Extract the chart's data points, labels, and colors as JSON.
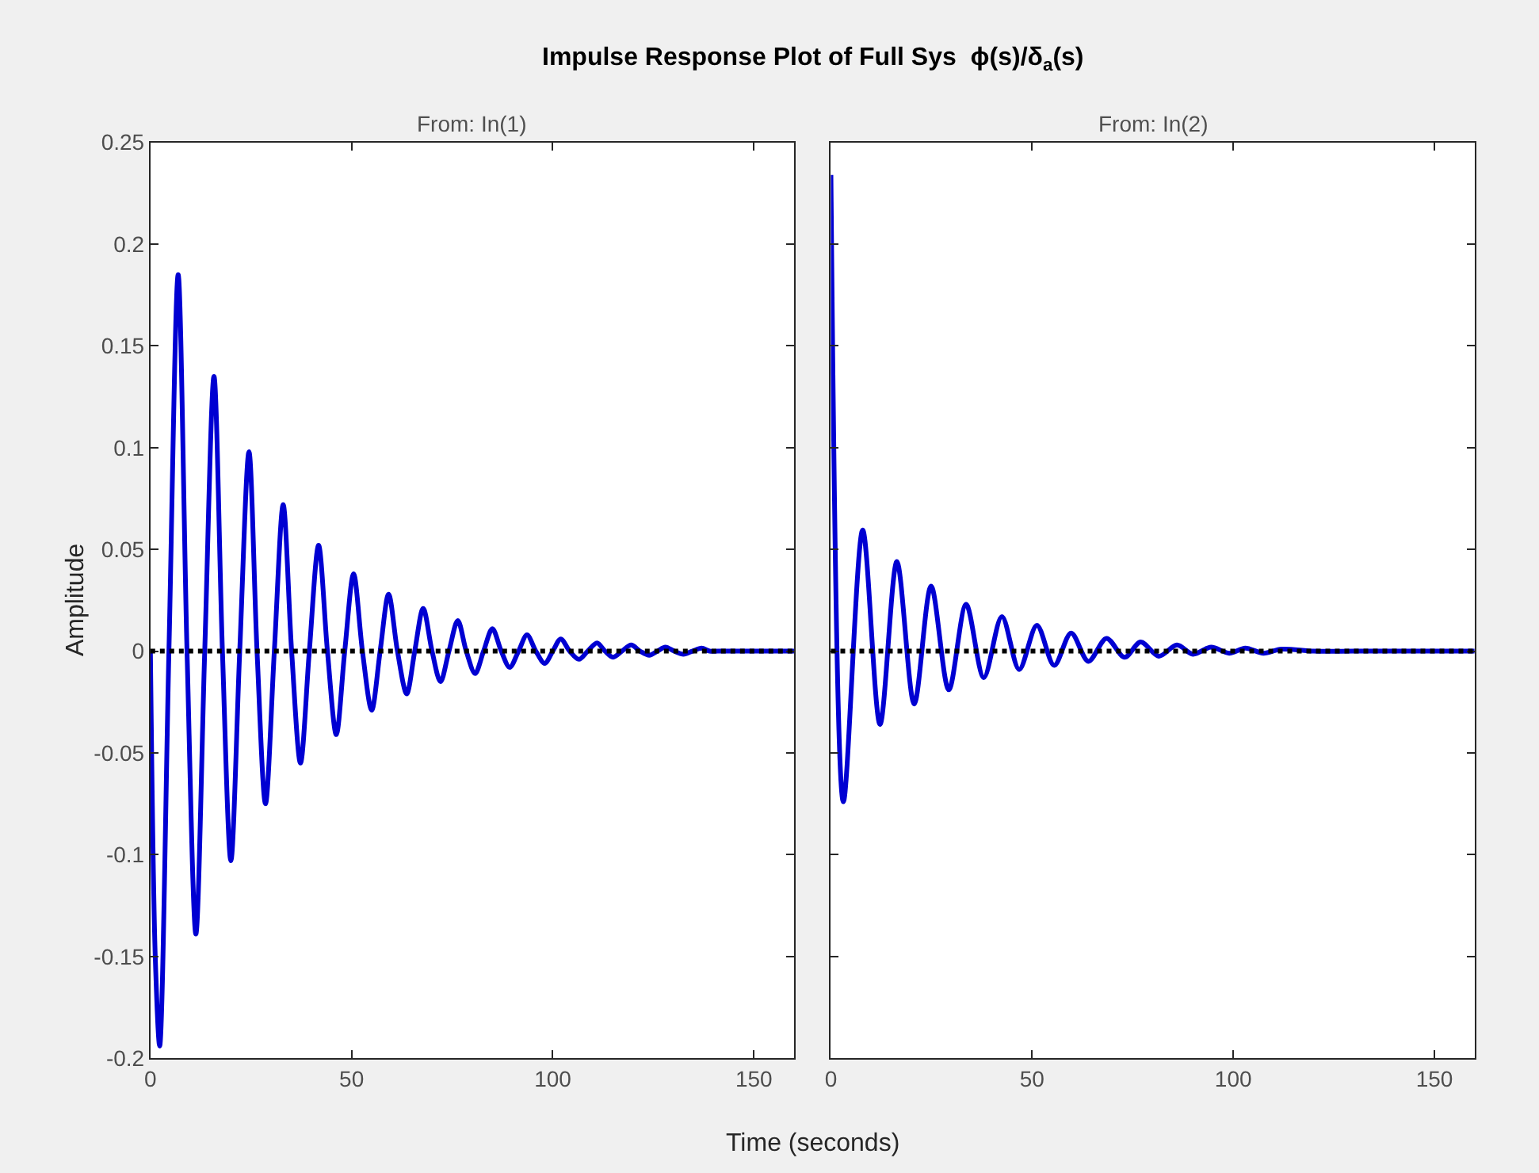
{
  "chart_data": [
    {
      "type": "line",
      "title": "Impulse Response Plot of Full Sys  ϕ(s)/δ$_{a}$(s)",
      "subtitle": "From: In(1)",
      "xlabel": "Time (seconds)",
      "ylabel": "Amplitude",
      "xlim": [
        0,
        160
      ],
      "xticks": [
        0,
        50,
        100,
        150
      ],
      "ylim": [
        -0.2,
        0.25
      ],
      "yticks": [
        -0.2,
        -0.15,
        -0.1,
        -0.05,
        0,
        0.05,
        0.1,
        0.15,
        0.2,
        0.25
      ],
      "marker": "none",
      "line_style": "solid",
      "ref_lines": [
        {
          "axis": "y",
          "value": 0,
          "color": "#000000",
          "line_style": "dotted"
        }
      ],
      "series": [
        {
          "color": "#0000d2",
          "x": [
            0,
            1.2,
            2.3,
            4.6,
            6.9,
            9.1,
            11.3,
            13.5,
            15.8,
            17.9,
            20,
            22.2,
            24.5,
            26.5,
            28.6,
            30.8,
            33,
            35.1,
            37.3,
            39.5,
            41.8,
            44,
            46.2,
            48.3,
            50.5,
            52.7,
            55,
            57.1,
            59.2,
            61.4,
            63.7,
            65.7,
            67.8,
            70,
            72.1,
            74.2,
            76.4,
            78.5,
            80.7,
            82.8,
            85,
            87.2,
            89.3,
            91.5,
            93.6,
            95.8,
            98,
            100,
            102,
            104.2,
            106.5,
            108.7,
            111,
            113,
            115,
            117.2,
            119.5,
            121.7,
            124,
            126,
            128,
            130.2,
            132.5,
            134.7,
            137,
            139,
            141,
            145,
            150,
            155,
            160
          ],
          "values": [
            0,
            -0.15,
            -0.194,
            0,
            0.185,
            0,
            -0.139,
            0,
            0.135,
            0,
            -0.103,
            0,
            0.098,
            0,
            -0.075,
            0,
            0.072,
            0,
            -0.055,
            0,
            0.052,
            0,
            -0.041,
            0,
            0.038,
            0,
            -0.029,
            0,
            0.028,
            0,
            -0.021,
            0,
            0.021,
            0,
            -0.015,
            0,
            0.015,
            0,
            -0.011,
            0,
            0.011,
            0,
            -0.008,
            0,
            0.008,
            0,
            -0.006,
            0,
            0.006,
            0,
            -0.004,
            0,
            0.004,
            0,
            -0.003,
            0,
            0.003,
            0,
            -0.002,
            0,
            0.002,
            0,
            -0.0015,
            0,
            0.0015,
            0,
            0,
            0,
            0,
            0,
            0
          ]
        }
      ]
    },
    {
      "type": "line",
      "subtitle": "From: In(2)",
      "xlim": [
        0,
        160
      ],
      "xticks": [
        0,
        50,
        100,
        150
      ],
      "ylim": [
        -0.2,
        0.25
      ],
      "yticks": [
        -0.2,
        -0.15,
        -0.1,
        -0.05,
        0,
        0.05,
        0.1,
        0.15,
        0.2,
        0.25
      ],
      "tick_labels": "x",
      "marker": "none",
      "line_style": "solid",
      "ref_lines": [
        {
          "axis": "y",
          "value": 0,
          "color": "#000000",
          "line_style": "dotted"
        }
      ],
      "series": [
        {
          "color": "#0000d2",
          "x": [
            0,
            3.1,
            7.9,
            12.2,
            16.4,
            20.7,
            24.9,
            29.3,
            33.6,
            38,
            42.5,
            46.8,
            51.2,
            55.5,
            59.7,
            64,
            68.5,
            73,
            77,
            81.5,
            86,
            90,
            94.5,
            99,
            103,
            107.5,
            112,
            120,
            130,
            140,
            150,
            160
          ],
          "values": [
            0.234,
            -0.074,
            0.0595,
            -0.036,
            0.044,
            -0.026,
            0.032,
            -0.019,
            0.023,
            -0.013,
            0.017,
            -0.009,
            0.0127,
            -0.007,
            0.0089,
            -0.005,
            0.0063,
            -0.003,
            0.0045,
            -0.0025,
            0.003,
            -0.0015,
            0.002,
            -0.001,
            0.0015,
            -0.001,
            0.001,
            0,
            0,
            0,
            0,
            0
          ]
        }
      ]
    }
  ]
}
